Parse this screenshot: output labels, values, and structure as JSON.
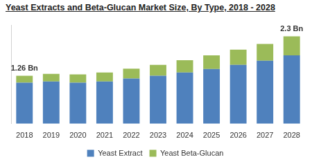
{
  "chart_data": {
    "type": "bar",
    "title": "Yeast Extracts and Beta-Glucan Market Size, By Type, 2018 - 2028",
    "categories": [
      "2018",
      "2019",
      "2020",
      "2021",
      "2022",
      "2023",
      "2024",
      "2025",
      "2026",
      "2027",
      "2028"
    ],
    "series": [
      {
        "name": "Yeast Extract",
        "color": "#4f81bd",
        "values": [
          1.08,
          1.11,
          1.08,
          1.11,
          1.19,
          1.26,
          1.35,
          1.44,
          1.55,
          1.66,
          1.8
        ]
      },
      {
        "name": "Yeast Beta-Glucan",
        "color": "#9bbb59",
        "values": [
          0.18,
          0.2,
          0.22,
          0.24,
          0.26,
          0.29,
          0.32,
          0.36,
          0.4,
          0.44,
          0.5
        ]
      }
    ],
    "annotations": [
      {
        "text": "1.26 Bn",
        "category": "2018"
      },
      {
        "text": "2.3 Bn",
        "category": "2028"
      }
    ],
    "stacked": true,
    "ylim": [
      0,
      2.6
    ],
    "tick_labels": "x",
    "grid": false,
    "legend": "bottom",
    "data_labels": false
  }
}
